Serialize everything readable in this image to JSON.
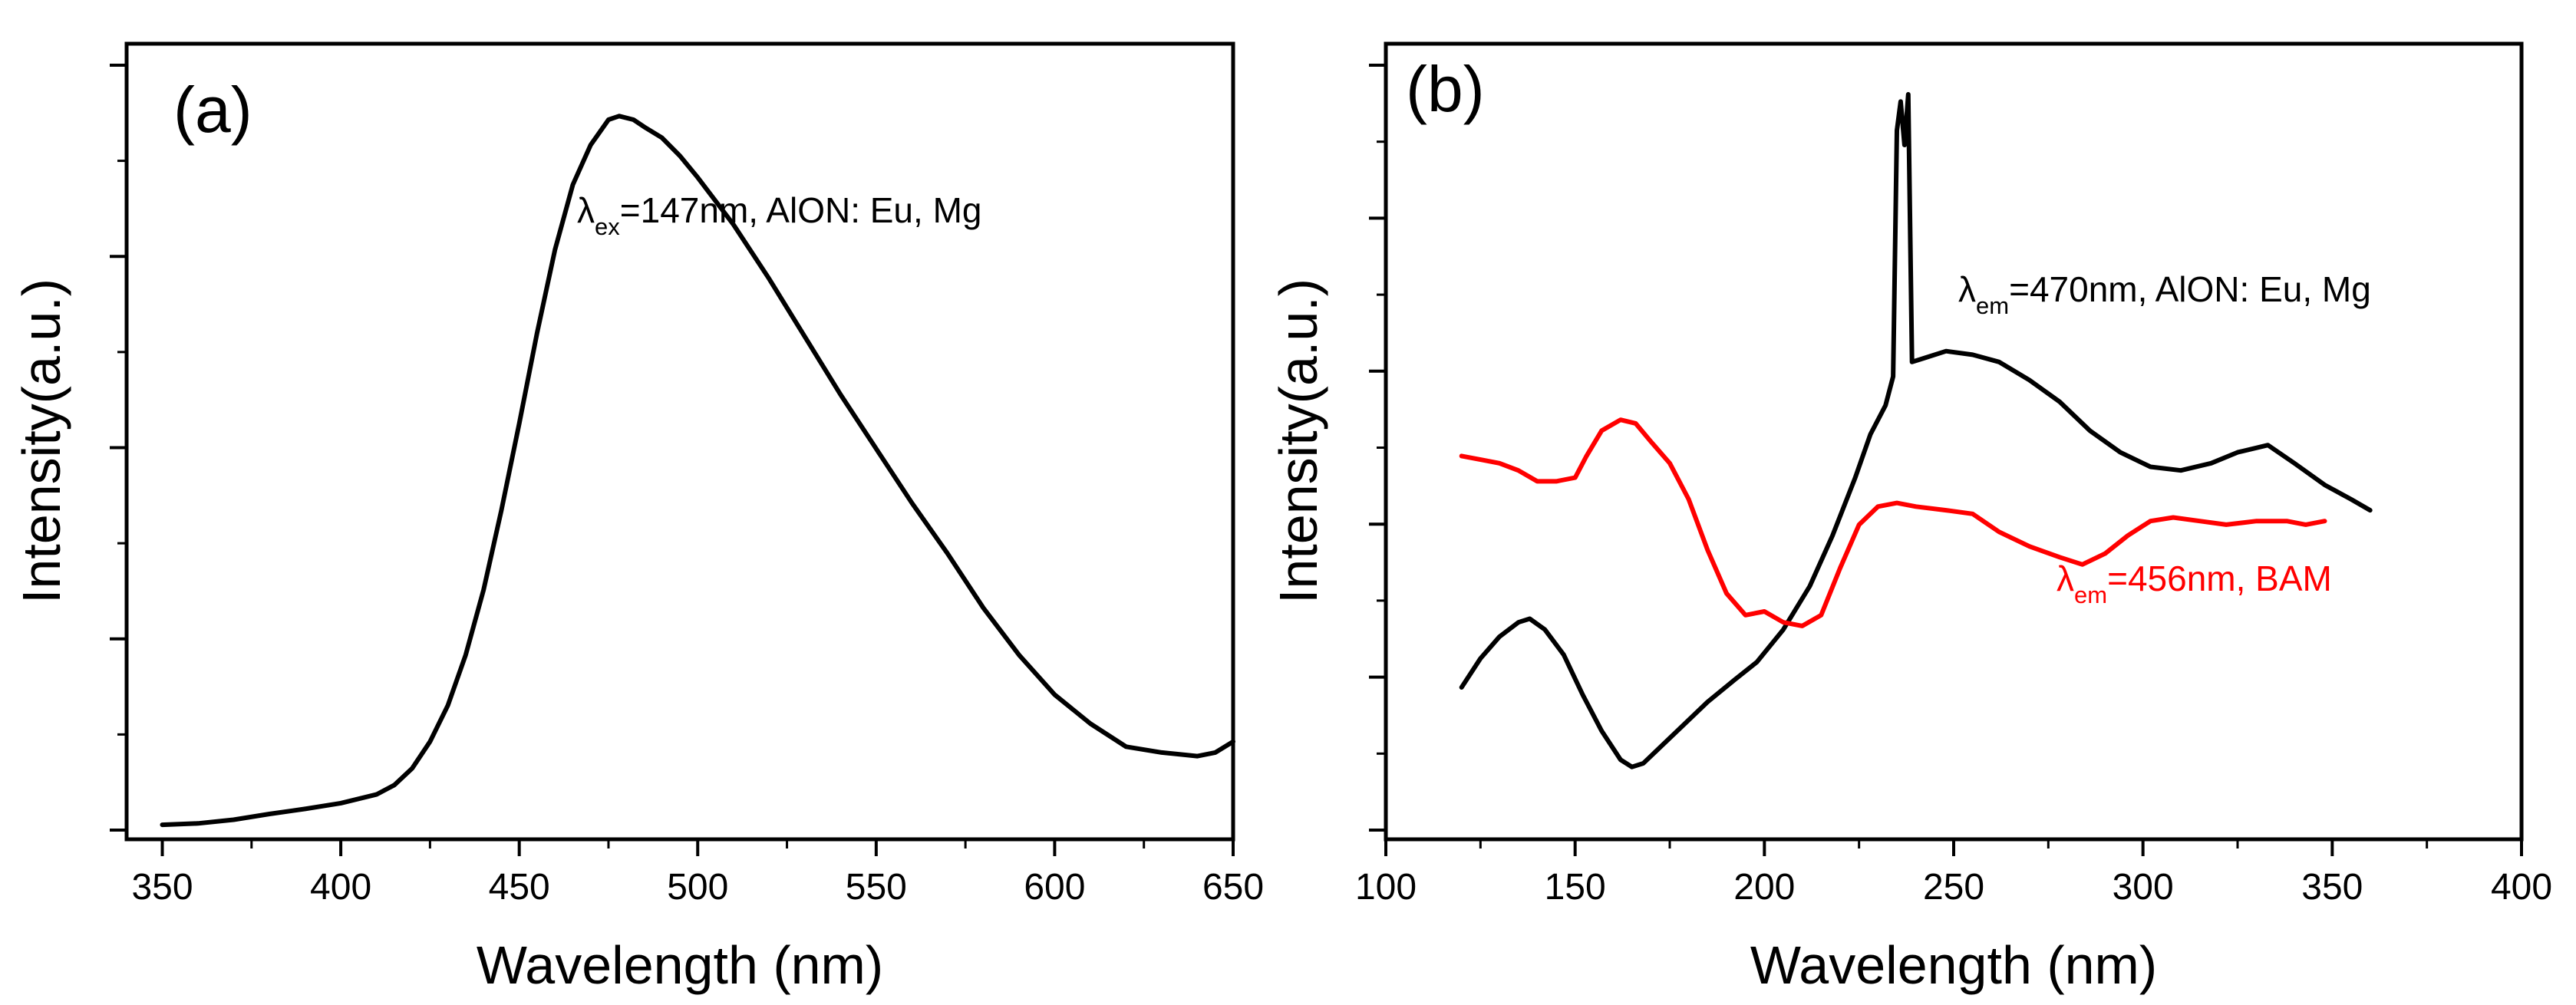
{
  "chart_data": [
    {
      "panel": "(a)",
      "type": "line",
      "xlabel": "Wavelength (nm)",
      "ylabel": "Intensity(a.u.)",
      "xlim": [
        340,
        650
      ],
      "ylim": [
        0,
        1.1
      ],
      "xticks": [
        350,
        400,
        450,
        500,
        550,
        600,
        650
      ],
      "grid": false,
      "series": [
        {
          "name": "λex=147nm, AlON: Eu, Mg",
          "color": "#000000",
          "points": [
            [
              350,
              0.02
            ],
            [
              360,
              0.022
            ],
            [
              370,
              0.027
            ],
            [
              380,
              0.035
            ],
            [
              390,
              0.042
            ],
            [
              400,
              0.05
            ],
            [
              410,
              0.062
            ],
            [
              415,
              0.075
            ],
            [
              420,
              0.098
            ],
            [
              425,
              0.135
            ],
            [
              430,
              0.185
            ],
            [
              435,
              0.255
            ],
            [
              440,
              0.345
            ],
            [
              445,
              0.455
            ],
            [
              450,
              0.575
            ],
            [
              455,
              0.7
            ],
            [
              460,
              0.815
            ],
            [
              465,
              0.905
            ],
            [
              470,
              0.96
            ],
            [
              475,
              0.995
            ],
            [
              478,
              1.0
            ],
            [
              482,
              0.995
            ],
            [
              485,
              0.985
            ],
            [
              490,
              0.97
            ],
            [
              495,
              0.945
            ],
            [
              500,
              0.915
            ],
            [
              510,
              0.85
            ],
            [
              520,
              0.775
            ],
            [
              530,
              0.695
            ],
            [
              540,
              0.615
            ],
            [
              550,
              0.54
            ],
            [
              560,
              0.465
            ],
            [
              570,
              0.395
            ],
            [
              580,
              0.32
            ],
            [
              590,
              0.255
            ],
            [
              600,
              0.2
            ],
            [
              610,
              0.16
            ],
            [
              620,
              0.128
            ],
            [
              630,
              0.12
            ],
            [
              640,
              0.115
            ],
            [
              645,
              0.12
            ],
            [
              650,
              0.135
            ]
          ]
        }
      ],
      "annotations": [
        {
          "symbol": "λ",
          "sub": "ex",
          "text": "=147nm, AlON: Eu, Mg",
          "color": "#000000"
        }
      ]
    },
    {
      "panel": "(b)",
      "type": "line",
      "xlabel": "Wavelength (nm)",
      "ylabel": "Intensity(a.u.)",
      "xlim": [
        100,
        400
      ],
      "ylim": [
        0,
        1.1
      ],
      "xticks": [
        100,
        150,
        200,
        250,
        300,
        350,
        400
      ],
      "grid": false,
      "series": [
        {
          "name": "λem=470nm, AlON: Eu, Mg",
          "color": "#000000",
          "points": [
            [
              120,
              0.21
            ],
            [
              125,
              0.25
            ],
            [
              130,
              0.28
            ],
            [
              135,
              0.3
            ],
            [
              138,
              0.305
            ],
            [
              142,
              0.29
            ],
            [
              147,
              0.255
            ],
            [
              152,
              0.2
            ],
            [
              157,
              0.15
            ],
            [
              162,
              0.11
            ],
            [
              165,
              0.1
            ],
            [
              168,
              0.105
            ],
            [
              172,
              0.125
            ],
            [
              178,
              0.155
            ],
            [
              185,
              0.19
            ],
            [
              192,
              0.22
            ],
            [
              198,
              0.245
            ],
            [
              205,
              0.29
            ],
            [
              212,
              0.35
            ],
            [
              218,
              0.42
            ],
            [
              224,
              0.5
            ],
            [
              228,
              0.56
            ],
            [
              232,
              0.6
            ],
            [
              234,
              0.64
            ],
            [
              235,
              0.98
            ],
            [
              236,
              1.02
            ],
            [
              237,
              0.96
            ],
            [
              238,
              1.03
            ],
            [
              239,
              0.66
            ],
            [
              242,
              0.665
            ],
            [
              248,
              0.675
            ],
            [
              255,
              0.67
            ],
            [
              262,
              0.66
            ],
            [
              270,
              0.635
            ],
            [
              278,
              0.605
            ],
            [
              286,
              0.565
            ],
            [
              294,
              0.535
            ],
            [
              302,
              0.515
            ],
            [
              310,
              0.51
            ],
            [
              318,
              0.52
            ],
            [
              325,
              0.535
            ],
            [
              333,
              0.545
            ],
            [
              340,
              0.52
            ],
            [
              348,
              0.49
            ],
            [
              355,
              0.47
            ],
            [
              360,
              0.455
            ]
          ]
        },
        {
          "name": "λem=456nm, BAM",
          "color": "#ff0000",
          "points": [
            [
              120,
              0.53
            ],
            [
              125,
              0.525
            ],
            [
              130,
              0.52
            ],
            [
              135,
              0.51
            ],
            [
              140,
              0.495
            ],
            [
              145,
              0.495
            ],
            [
              150,
              0.5
            ],
            [
              153,
              0.53
            ],
            [
              157,
              0.565
            ],
            [
              162,
              0.58
            ],
            [
              166,
              0.575
            ],
            [
              170,
              0.55
            ],
            [
              175,
              0.52
            ],
            [
              180,
              0.47
            ],
            [
              185,
              0.4
            ],
            [
              190,
              0.34
            ],
            [
              195,
              0.31
            ],
            [
              200,
              0.315
            ],
            [
              205,
              0.3
            ],
            [
              210,
              0.295
            ],
            [
              215,
              0.31
            ],
            [
              220,
              0.375
            ],
            [
              225,
              0.435
            ],
            [
              230,
              0.46
            ],
            [
              235,
              0.465
            ],
            [
              240,
              0.46
            ],
            [
              248,
              0.455
            ],
            [
              255,
              0.45
            ],
            [
              262,
              0.425
            ],
            [
              270,
              0.405
            ],
            [
              278,
              0.39
            ],
            [
              284,
              0.38
            ],
            [
              290,
              0.395
            ],
            [
              296,
              0.42
            ],
            [
              302,
              0.44
            ],
            [
              308,
              0.445
            ],
            [
              315,
              0.44
            ],
            [
              322,
              0.435
            ],
            [
              330,
              0.44
            ],
            [
              338,
              0.44
            ],
            [
              343,
              0.435
            ],
            [
              348,
              0.44
            ]
          ]
        }
      ],
      "annotations": [
        {
          "symbol": "λ",
          "sub": "em",
          "text": "=470nm, AlON: Eu, Mg",
          "color": "#000000"
        },
        {
          "symbol": "λ",
          "sub": "em",
          "text": "=456nm, BAM",
          "color": "#ff0000"
        }
      ]
    }
  ]
}
